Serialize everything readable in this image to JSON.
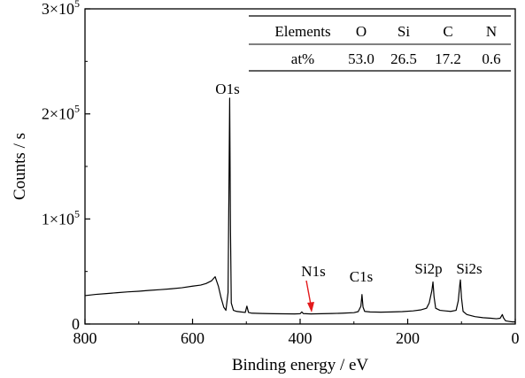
{
  "chart_data": {
    "type": "line",
    "xlabel": "Binding energy / eV",
    "ylabel": "Counts / s",
    "xlim": [
      800,
      0
    ],
    "ylim": [
      0,
      300000
    ],
    "x_reversed": true,
    "grid": false,
    "x_ticks": [
      800,
      600,
      400,
      200,
      0
    ],
    "x_tick_labels": [
      "800",
      "600",
      "400",
      "200",
      "0"
    ],
    "y_ticks": [
      0,
      100000,
      200000,
      300000
    ],
    "y_tick_labels": [
      {
        "mantissa": "0",
        "exponent": ""
      },
      {
        "mantissa": "1×10",
        "exponent": "5"
      },
      {
        "mantissa": "2×10",
        "exponent": "5"
      },
      {
        "mantissa": "3×10",
        "exponent": "5"
      }
    ],
    "series": [
      {
        "color": "#000000",
        "points": [
          [
            800,
            27000
          ],
          [
            780,
            28200
          ],
          [
            760,
            29000
          ],
          [
            740,
            29800
          ],
          [
            720,
            30600
          ],
          [
            700,
            31200
          ],
          [
            680,
            32000
          ],
          [
            660,
            32700
          ],
          [
            640,
            33500
          ],
          [
            620,
            34500
          ],
          [
            600,
            36000
          ],
          [
            585,
            37000
          ],
          [
            575,
            38500
          ],
          [
            565,
            41000
          ],
          [
            558,
            45000
          ],
          [
            552,
            36000
          ],
          [
            547,
            25000
          ],
          [
            542,
            16000
          ],
          [
            538,
            13000
          ],
          [
            534,
            30000
          ],
          [
            532.5,
            120000
          ],
          [
            531,
            215000
          ],
          [
            529.5,
            90000
          ],
          [
            528,
            20000
          ],
          [
            524,
            13000
          ],
          [
            518,
            12000
          ],
          [
            510,
            11500
          ],
          [
            502,
            11000
          ],
          [
            499,
            17000
          ],
          [
            496,
            11000
          ],
          [
            490,
            10300
          ],
          [
            470,
            10000
          ],
          [
            450,
            9800
          ],
          [
            430,
            9700
          ],
          [
            410,
            9600
          ],
          [
            400,
            9800
          ],
          [
            397,
            11500
          ],
          [
            394,
            9900
          ],
          [
            380,
            9600
          ],
          [
            360,
            9800
          ],
          [
            340,
            10000
          ],
          [
            320,
            10300
          ],
          [
            300,
            10800
          ],
          [
            292,
            11800
          ],
          [
            287,
            17000
          ],
          [
            285,
            28000
          ],
          [
            283,
            16000
          ],
          [
            280,
            12000
          ],
          [
            270,
            11500
          ],
          [
            250,
            11300
          ],
          [
            230,
            11500
          ],
          [
            210,
            11800
          ],
          [
            190,
            12500
          ],
          [
            175,
            13500
          ],
          [
            165,
            15000
          ],
          [
            160,
            20000
          ],
          [
            155,
            32000
          ],
          [
            153,
            40000
          ],
          [
            151,
            26000
          ],
          [
            148,
            15000
          ],
          [
            140,
            13000
          ],
          [
            130,
            12500
          ],
          [
            120,
            12000
          ],
          [
            110,
            13000
          ],
          [
            106,
            22000
          ],
          [
            103,
            38000
          ],
          [
            102,
            42000
          ],
          [
            100,
            25000
          ],
          [
            97,
            12000
          ],
          [
            90,
            9000
          ],
          [
            75,
            7000
          ],
          [
            60,
            6000
          ],
          [
            45,
            5500
          ],
          [
            35,
            5000
          ],
          [
            28,
            5500
          ],
          [
            24,
            9000
          ],
          [
            22,
            6000
          ],
          [
            18,
            3000
          ],
          [
            12,
            2500
          ],
          [
            5,
            2000
          ],
          [
            0,
            2000
          ]
        ]
      }
    ],
    "annotations": [
      {
        "text": "O1s",
        "x": 531,
        "y": 215000
      },
      {
        "text": "N1s",
        "x": 380,
        "y": 12000,
        "arrow": true,
        "arrow_color": "#e31a1c"
      },
      {
        "text": "C1s",
        "x": 285,
        "y": 28000
      },
      {
        "text": "Si2p",
        "x": 155,
        "y": 40000
      },
      {
        "text": "Si2s",
        "x": 102,
        "y": 42000
      }
    ],
    "inset_table": {
      "header": [
        "Elements",
        "O",
        "Si",
        "C",
        "N"
      ],
      "row": [
        "at%",
        "53.0",
        "26.5",
        "17.2",
        "0.6"
      ]
    }
  }
}
